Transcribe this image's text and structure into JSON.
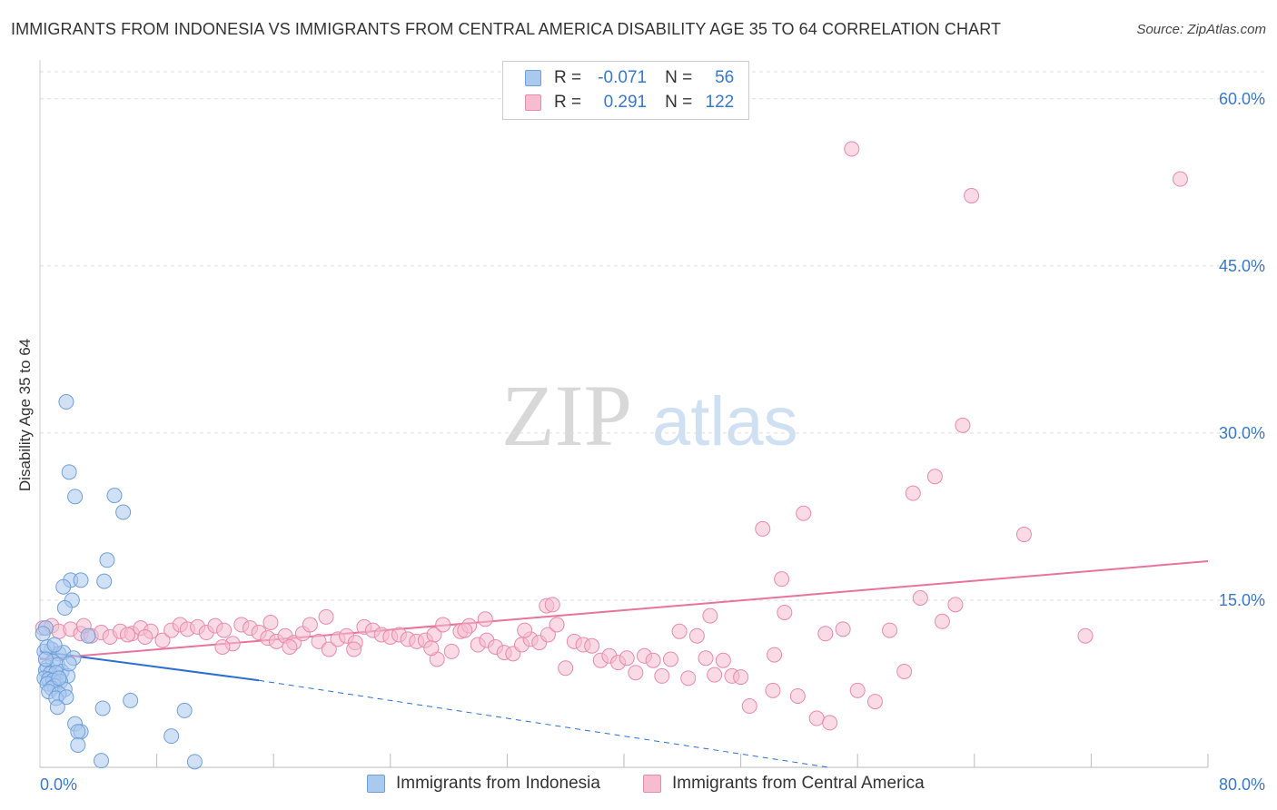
{
  "header": {
    "title": "IMMIGRANTS FROM INDONESIA VS IMMIGRANTS FROM CENTRAL AMERICA DISABILITY AGE 35 TO 64 CORRELATION CHART",
    "source": "Source: ZipAtlas.com"
  },
  "watermark": {
    "part1": "ZIP",
    "part2": "atlas"
  },
  "legend": {
    "rows": [
      {
        "r_label": "R =",
        "r_value": "-0.071",
        "n_label": "N =",
        "n_value": "56"
      },
      {
        "r_label": "R =",
        "r_value": "0.291",
        "n_label": "N =",
        "n_value": "122"
      }
    ]
  },
  "colors": {
    "blue_fill": "#a9c9ef",
    "blue_stroke": "#6f9fd8",
    "blue_line": "#2c6fd1",
    "pink_fill": "#f6bcd0",
    "pink_stroke": "#e88aab",
    "pink_line": "#e8739b",
    "tick_text": "#3a78c9",
    "grid": "#dddddd"
  },
  "chart_data": {
    "type": "scatter",
    "title": "IMMIGRANTS FROM INDONESIA VS IMMIGRANTS FROM CENTRAL AMERICA DISABILITY AGE 35 TO 64 CORRELATION CHART",
    "xlabel": "",
    "ylabel": "Disability Age 35 to 64",
    "xlim": [
      0,
      80
    ],
    "ylim": [
      0,
      63
    ],
    "x_tick_labels": [
      "0.0%",
      "80.0%"
    ],
    "y_ticks": [
      15,
      30,
      45,
      60
    ],
    "y_tick_labels": [
      "15.0%",
      "30.0%",
      "45.0%",
      "60.0%"
    ],
    "grid": true,
    "legend_position": "top-center",
    "series": [
      {
        "name": "Immigrants from Indonesia",
        "r": -0.071,
        "n": 56,
        "trend": {
          "x0": 0,
          "y0": 10.4,
          "x1": 15,
          "y1": 7.8,
          "dashed_to_x": 54,
          "dashed_to_y": 0
        },
        "points": [
          [
            1.8,
            32.8
          ],
          [
            2.0,
            26.5
          ],
          [
            2.4,
            24.3
          ],
          [
            5.1,
            24.4
          ],
          [
            5.7,
            22.9
          ],
          [
            4.6,
            18.6
          ],
          [
            2.1,
            16.8
          ],
          [
            2.8,
            16.8
          ],
          [
            4.4,
            16.7
          ],
          [
            1.6,
            16.2
          ],
          [
            2.2,
            15.0
          ],
          [
            1.7,
            14.3
          ],
          [
            3.3,
            11.8
          ],
          [
            0.4,
            12.5
          ],
          [
            0.8,
            10.6
          ],
          [
            0.3,
            10.4
          ],
          [
            1.3,
            10.2
          ],
          [
            1.6,
            10.3
          ],
          [
            2.3,
            9.8
          ],
          [
            0.9,
            9.5
          ],
          [
            0.5,
            9.0
          ],
          [
            1.2,
            9.2
          ],
          [
            0.4,
            8.7
          ],
          [
            1.5,
            8.6
          ],
          [
            0.7,
            8.4
          ],
          [
            1.1,
            8.5
          ],
          [
            1.9,
            8.2
          ],
          [
            0.3,
            8.0
          ],
          [
            0.6,
            7.9
          ],
          [
            0.9,
            7.8
          ],
          [
            1.4,
            7.7
          ],
          [
            0.5,
            7.5
          ],
          [
            1.0,
            7.3
          ],
          [
            0.8,
            7.1
          ],
          [
            1.7,
            7.0
          ],
          [
            0.6,
            6.8
          ],
          [
            1.3,
            6.6
          ],
          [
            1.1,
            6.2
          ],
          [
            1.8,
            6.3
          ],
          [
            1.2,
            5.4
          ],
          [
            4.3,
            5.3
          ],
          [
            6.2,
            6.0
          ],
          [
            9.9,
            5.1
          ],
          [
            2.4,
            3.9
          ],
          [
            2.8,
            3.2
          ],
          [
            2.6,
            3.2
          ],
          [
            9.0,
            2.8
          ],
          [
            2.6,
            2.0
          ],
          [
            4.2,
            0.6
          ],
          [
            10.6,
            0.5
          ],
          [
            0.2,
            12.0
          ],
          [
            0.5,
            10.8
          ],
          [
            1.0,
            11.0
          ],
          [
            0.4,
            9.7
          ],
          [
            2.0,
            9.3
          ],
          [
            1.3,
            8.0
          ]
        ]
      },
      {
        "name": "Immigrants from Central America",
        "r": 0.291,
        "n": 122,
        "trend": {
          "x0": 0,
          "y0": 9.7,
          "x1": 80,
          "y1": 18.5
        },
        "points": [
          [
            55.6,
            55.5
          ],
          [
            78.1,
            52.8
          ],
          [
            63.8,
            51.3
          ],
          [
            63.2,
            30.7
          ],
          [
            61.3,
            26.1
          ],
          [
            59.8,
            24.6
          ],
          [
            52.3,
            22.8
          ],
          [
            67.4,
            20.9
          ],
          [
            49.5,
            21.4
          ],
          [
            50.8,
            16.9
          ],
          [
            34.7,
            14.5
          ],
          [
            35.1,
            14.6
          ],
          [
            45.9,
            13.6
          ],
          [
            51.0,
            13.9
          ],
          [
            60.3,
            15.2
          ],
          [
            62.7,
            14.6
          ],
          [
            61.8,
            13.1
          ],
          [
            19.6,
            13.5
          ],
          [
            30.5,
            13.3
          ],
          [
            15.8,
            13.0
          ],
          [
            0.2,
            12.5
          ],
          [
            0.8,
            12.7
          ],
          [
            1.3,
            12.2
          ],
          [
            2.1,
            12.4
          ],
          [
            2.8,
            12.0
          ],
          [
            3.5,
            11.8
          ],
          [
            4.2,
            12.1
          ],
          [
            4.8,
            11.7
          ],
          [
            5.5,
            12.2
          ],
          [
            6.3,
            12.0
          ],
          [
            6.9,
            12.5
          ],
          [
            7.6,
            12.2
          ],
          [
            8.4,
            11.4
          ],
          [
            9.0,
            12.3
          ],
          [
            9.6,
            12.8
          ],
          [
            10.1,
            12.4
          ],
          [
            10.8,
            12.6
          ],
          [
            11.4,
            12.1
          ],
          [
            12.0,
            12.7
          ],
          [
            12.6,
            12.3
          ],
          [
            13.2,
            11.1
          ],
          [
            13.8,
            12.8
          ],
          [
            14.4,
            12.5
          ],
          [
            15.0,
            12.1
          ],
          [
            15.6,
            11.6
          ],
          [
            16.2,
            11.3
          ],
          [
            16.8,
            11.8
          ],
          [
            17.4,
            11.2
          ],
          [
            18.0,
            12.0
          ],
          [
            18.5,
            12.8
          ],
          [
            19.1,
            11.3
          ],
          [
            19.8,
            10.6
          ],
          [
            20.4,
            11.5
          ],
          [
            21.0,
            11.8
          ],
          [
            21.6,
            11.2
          ],
          [
            22.2,
            12.6
          ],
          [
            22.8,
            12.3
          ],
          [
            23.4,
            11.9
          ],
          [
            24.0,
            11.7
          ],
          [
            24.6,
            11.9
          ],
          [
            25.2,
            11.5
          ],
          [
            25.8,
            11.3
          ],
          [
            26.4,
            11.4
          ],
          [
            27.0,
            11.9
          ],
          [
            27.6,
            12.8
          ],
          [
            28.2,
            10.4
          ],
          [
            28.8,
            12.2
          ],
          [
            29.4,
            12.7
          ],
          [
            30.0,
            11.0
          ],
          [
            30.6,
            11.4
          ],
          [
            31.2,
            10.8
          ],
          [
            31.8,
            10.3
          ],
          [
            32.4,
            10.2
          ],
          [
            33.0,
            11.0
          ],
          [
            33.6,
            11.5
          ],
          [
            34.2,
            11.2
          ],
          [
            34.8,
            11.9
          ],
          [
            35.4,
            12.8
          ],
          [
            36.0,
            8.9
          ],
          [
            36.6,
            11.3
          ],
          [
            37.2,
            11.0
          ],
          [
            37.8,
            10.9
          ],
          [
            38.4,
            9.6
          ],
          [
            39.0,
            10.0
          ],
          [
            39.6,
            9.4
          ],
          [
            40.2,
            9.8
          ],
          [
            40.8,
            8.5
          ],
          [
            41.4,
            10.0
          ],
          [
            42.0,
            9.6
          ],
          [
            42.6,
            8.2
          ],
          [
            43.2,
            9.7
          ],
          [
            43.8,
            12.2
          ],
          [
            44.4,
            8.0
          ],
          [
            45.0,
            11.8
          ],
          [
            45.6,
            9.8
          ],
          [
            46.2,
            8.3
          ],
          [
            46.8,
            9.6
          ],
          [
            47.4,
            8.2
          ],
          [
            48.0,
            8.1
          ],
          [
            48.6,
            5.5
          ],
          [
            50.2,
            6.9
          ],
          [
            51.9,
            6.4
          ],
          [
            53.2,
            4.4
          ],
          [
            54.1,
            4.0
          ],
          [
            56.0,
            6.9
          ],
          [
            57.2,
            5.9
          ],
          [
            58.2,
            12.3
          ],
          [
            59.2,
            8.6
          ],
          [
            53.8,
            12.0
          ],
          [
            55.0,
            12.4
          ],
          [
            50.3,
            10.1
          ],
          [
            27.2,
            9.7
          ],
          [
            26.8,
            10.7
          ],
          [
            21.5,
            10.6
          ],
          [
            17.1,
            10.8
          ],
          [
            12.5,
            10.8
          ],
          [
            29.1,
            12.3
          ],
          [
            33.2,
            12.3
          ],
          [
            71.6,
            11.8
          ],
          [
            6.0,
            11.9
          ],
          [
            3.0,
            12.7
          ],
          [
            7.2,
            11.7
          ]
        ]
      }
    ]
  },
  "bottom_legend": {
    "items": [
      {
        "label": "Immigrants from Indonesia"
      },
      {
        "label": "Immigrants from Central America"
      }
    ]
  }
}
